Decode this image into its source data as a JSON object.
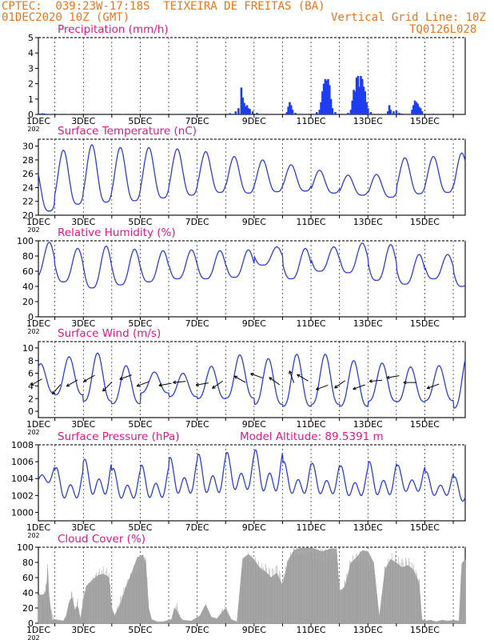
{
  "header": {
    "station": "CPTEC:  039:23W-17:18S  TEIXEIRA DE FREITAS (BA)",
    "run": "01DEC2020 10Z (GMT)",
    "grid_note": "Vertical Grid Line: 10Z",
    "code": "TQ0126L028"
  },
  "colors": {
    "header": "#e8761c",
    "title": "#e0178a",
    "line": "#2b3fd6",
    "bar": "#1e3cf0",
    "cloud": "#a8a8a8",
    "wind": "#000000"
  },
  "x_axis": {
    "labels": [
      "1DEC",
      "3DEC",
      "5DEC",
      "7DEC",
      "9DEC",
      "11DEC",
      "13DEC",
      "15DEC"
    ],
    "year_stub": "202"
  },
  "chart_data": [
    {
      "id": "precip",
      "type": "bar",
      "title": "Precipitation (mm/h)",
      "ylim": [
        0,
        5
      ],
      "yticks": [
        0,
        1,
        2,
        3,
        4,
        5
      ],
      "x_range_days": [
        1.42,
        16.42
      ],
      "values_by_day": [
        [
          1.48,
          0.05
        ],
        [
          1.55,
          0.07
        ],
        [
          1.62,
          0.06
        ],
        [
          1.7,
          0.04
        ],
        [
          1.8,
          0.03
        ],
        [
          2.1,
          0.03
        ],
        [
          2.5,
          0.02
        ],
        [
          3.2,
          0.03
        ],
        [
          4.4,
          0.02
        ],
        [
          5.5,
          0.03
        ],
        [
          6.9,
          0.03
        ],
        [
          8.15,
          0.08
        ],
        [
          8.35,
          0.2
        ],
        [
          8.45,
          0.4
        ],
        [
          8.55,
          1.75
        ],
        [
          8.6,
          1.1
        ],
        [
          8.65,
          0.75
        ],
        [
          8.7,
          0.5
        ],
        [
          8.75,
          0.6
        ],
        [
          8.8,
          0.4
        ],
        [
          8.85,
          0.35
        ],
        [
          8.95,
          0.2
        ],
        [
          9.1,
          0.1
        ],
        [
          10.15,
          0.15
        ],
        [
          10.2,
          0.5
        ],
        [
          10.25,
          0.8
        ],
        [
          10.3,
          0.6
        ],
        [
          10.35,
          0.3
        ],
        [
          10.45,
          0.1
        ],
        [
          11.0,
          0.05
        ],
        [
          11.2,
          0.15
        ],
        [
          11.3,
          0.3
        ],
        [
          11.35,
          0.8
        ],
        [
          11.4,
          1.5
        ],
        [
          11.45,
          2.0
        ],
        [
          11.5,
          2.3
        ],
        [
          11.55,
          2.2
        ],
        [
          11.6,
          2.3
        ],
        [
          11.65,
          1.9
        ],
        [
          11.7,
          1.0
        ],
        [
          11.75,
          0.4
        ],
        [
          11.85,
          0.15
        ],
        [
          12.3,
          0.1
        ],
        [
          12.4,
          0.3
        ],
        [
          12.45,
          0.9
        ],
        [
          12.5,
          1.6
        ],
        [
          12.55,
          1.5
        ],
        [
          12.6,
          2.4
        ],
        [
          12.65,
          2.5
        ],
        [
          12.7,
          1.8
        ],
        [
          12.75,
          2.5
        ],
        [
          12.8,
          2.3
        ],
        [
          12.85,
          1.8
        ],
        [
          12.9,
          1.5
        ],
        [
          12.95,
          0.8
        ],
        [
          13.0,
          0.4
        ],
        [
          13.1,
          0.15
        ],
        [
          13.7,
          0.2
        ],
        [
          13.75,
          0.6
        ],
        [
          13.8,
          0.3
        ],
        [
          13.9,
          0.2
        ],
        [
          14.0,
          0.25
        ],
        [
          14.1,
          0.1
        ],
        [
          14.2,
          0.05
        ],
        [
          14.55,
          0.3
        ],
        [
          14.6,
          0.6
        ],
        [
          14.65,
          0.9
        ],
        [
          14.7,
          0.8
        ],
        [
          14.75,
          0.7
        ],
        [
          14.8,
          0.5
        ],
        [
          14.85,
          0.4
        ],
        [
          14.9,
          0.2
        ],
        [
          15.3,
          0.05
        ]
      ]
    },
    {
      "id": "temp",
      "type": "line",
      "title": "Surface Temperature (nC)",
      "ylim": [
        20,
        31
      ],
      "yticks": [
        20,
        22,
        24,
        26,
        28,
        30
      ],
      "x_range_days": [
        1.42,
        16.42
      ],
      "daily_min": [
        20.6,
        21.6,
        21.9,
        22.1,
        22.5,
        22.9,
        23.3,
        23.2,
        23.4,
        23.5,
        23.2,
        22.9,
        22.6,
        23.1,
        23.3,
        23.0
      ],
      "daily_max": [
        27.4,
        29.4,
        30.2,
        29.8,
        29.8,
        29.6,
        29.2,
        28.5,
        28.0,
        27.3,
        26.5,
        25.8,
        25.9,
        28.3,
        28.5,
        29.0
      ]
    },
    {
      "id": "rh",
      "type": "line",
      "title": "Relative Humidity (%)",
      "ylim": [
        0,
        100
      ],
      "yticks": [
        0,
        20,
        40,
        60,
        80,
        100
      ],
      "x_range_days": [
        1.42,
        16.42
      ],
      "daily_max": [
        98,
        90,
        93,
        89,
        87,
        88,
        87,
        88,
        92,
        90,
        92,
        97,
        95,
        82,
        82,
        80
      ],
      "daily_min": [
        52,
        46,
        38,
        42,
        46,
        50,
        50,
        52,
        68,
        50,
        60,
        58,
        48,
        43,
        50,
        40
      ]
    },
    {
      "id": "wind",
      "type": "line",
      "title": "Surface Wind (m/s)",
      "ylim": [
        -1,
        11
      ],
      "yticks": [
        0,
        2,
        4,
        6,
        8,
        10
      ],
      "x_range_days": [
        1.42,
        16.42
      ],
      "daily_max": [
        7.5,
        8.6,
        9.2,
        7.2,
        6.2,
        6.0,
        7.1,
        8.9,
        8.3,
        9.0,
        9.0,
        8.0,
        7.6,
        7.0,
        7.2,
        9.0
      ],
      "daily_min": [
        2.8,
        2.6,
        1.6,
        1.2,
        2.9,
        2.3,
        2.0,
        2.1,
        1.1,
        0.8,
        1.1,
        0.8,
        1.6,
        1.5,
        1.7,
        0.5
      ]
    },
    {
      "id": "pressure",
      "type": "line",
      "title": "Surface Pressure (hPa)",
      "annotation": "Model Altitude: 89.5391 m",
      "ylim": [
        999,
        1008
      ],
      "yticks": [
        1000,
        1002,
        1004,
        1006,
        1008
      ],
      "x_range_days": [
        1.42,
        16.42
      ],
      "daily_max": [
        1005.6,
        1005.3,
        1006.3,
        1005.2,
        1005.6,
        1006.5,
        1006.9,
        1007.1,
        1007.4,
        1006.0,
        1005.8,
        1005.5,
        1006.0,
        1005.6,
        1004.8,
        1004.2
      ],
      "daily_min": [
        1003.0,
        1000.8,
        1001.1,
        1000.8,
        1000.8,
        1001.2,
        1001.2,
        1001.6,
        1001.3,
        1001.3,
        1001.3,
        1001.1,
        1001.1,
        1001.7,
        1001.3,
        1000.6
      ]
    },
    {
      "id": "cloud",
      "type": "area",
      "title": "Cloud Cover (%)",
      "ylim": [
        0,
        100
      ],
      "yticks": [
        0,
        20,
        40,
        60,
        80,
        100
      ],
      "x_range_days": [
        1.42,
        16.42
      ],
      "segments": [
        [
          1.42,
          40
        ],
        [
          1.6,
          38
        ],
        [
          1.7,
          55
        ],
        [
          1.75,
          78
        ],
        [
          1.8,
          35
        ],
        [
          1.9,
          15
        ],
        [
          2.0,
          5
        ],
        [
          2.3,
          3
        ],
        [
          2.4,
          10
        ],
        [
          2.5,
          30
        ],
        [
          2.6,
          45
        ],
        [
          2.7,
          18
        ],
        [
          2.8,
          35
        ],
        [
          2.9,
          5
        ],
        [
          3.0,
          40
        ],
        [
          3.1,
          50
        ],
        [
          3.3,
          60
        ],
        [
          3.5,
          70
        ],
        [
          3.7,
          75
        ],
        [
          3.9,
          72
        ],
        [
          4.0,
          20
        ],
        [
          4.1,
          10
        ],
        [
          4.3,
          35
        ],
        [
          4.5,
          55
        ],
        [
          4.7,
          70
        ],
        [
          4.9,
          88
        ],
        [
          5.1,
          90
        ],
        [
          5.2,
          88
        ],
        [
          5.3,
          20
        ],
        [
          5.4,
          5
        ],
        [
          5.6,
          2
        ],
        [
          5.8,
          2
        ],
        [
          6.1,
          5
        ],
        [
          6.2,
          20
        ],
        [
          6.3,
          28
        ],
        [
          6.4,
          8
        ],
        [
          6.5,
          4
        ],
        [
          6.8,
          3
        ],
        [
          7.1,
          10
        ],
        [
          7.3,
          25
        ],
        [
          7.5,
          8
        ],
        [
          7.7,
          6
        ],
        [
          7.9,
          20
        ],
        [
          8.0,
          25
        ],
        [
          8.2,
          5
        ],
        [
          8.4,
          2
        ],
        [
          8.6,
          85
        ],
        [
          8.8,
          92
        ],
        [
          9.0,
          88
        ],
        [
          9.2,
          80
        ],
        [
          9.4,
          78
        ],
        [
          9.6,
          72
        ],
        [
          9.8,
          78
        ],
        [
          10.0,
          60
        ],
        [
          10.2,
          90
        ],
        [
          10.4,
          100
        ],
        [
          10.6,
          100
        ],
        [
          11.0,
          100
        ],
        [
          11.4,
          100
        ],
        [
          11.7,
          100
        ],
        [
          11.9,
          98
        ],
        [
          12.0,
          55
        ],
        [
          12.1,
          45
        ],
        [
          12.2,
          60
        ],
        [
          12.4,
          88
        ],
        [
          12.6,
          92
        ],
        [
          12.8,
          98
        ],
        [
          13.0,
          95
        ],
        [
          13.2,
          80
        ],
        [
          13.4,
          8
        ],
        [
          13.6,
          75
        ],
        [
          13.8,
          92
        ],
        [
          14.0,
          90
        ],
        [
          14.2,
          85
        ],
        [
          14.4,
          88
        ],
        [
          14.6,
          80
        ],
        [
          14.8,
          60
        ],
        [
          14.9,
          5
        ],
        [
          15.0,
          3
        ],
        [
          15.2,
          4
        ],
        [
          15.4,
          2
        ],
        [
          15.6,
          4
        ],
        [
          15.8,
          3
        ],
        [
          16.0,
          4
        ],
        [
          16.2,
          3
        ],
        [
          16.3,
          80
        ],
        [
          16.42,
          90
        ]
      ]
    }
  ],
  "wind_arrows": {
    "note": "direction of arrows (degrees, math convention) at sample days",
    "samples": [
      [
        1.55,
        210
      ],
      [
        2.2,
        230
      ],
      [
        2.8,
        210
      ],
      [
        3.4,
        210
      ],
      [
        4.0,
        225
      ],
      [
        4.7,
        200
      ],
      [
        5.3,
        200
      ],
      [
        6.1,
        190
      ],
      [
        6.6,
        185
      ],
      [
        7.4,
        190
      ],
      [
        7.9,
        215
      ],
      [
        8.7,
        150
      ],
      [
        9.3,
        160
      ],
      [
        9.9,
        145
      ],
      [
        10.4,
        110
      ],
      [
        10.9,
        150
      ],
      [
        11.6,
        200
      ],
      [
        12.2,
        215
      ],
      [
        12.9,
        200
      ],
      [
        13.5,
        185
      ],
      [
        14.1,
        190
      ],
      [
        14.7,
        180
      ],
      [
        15.5,
        200
      ]
    ]
  }
}
